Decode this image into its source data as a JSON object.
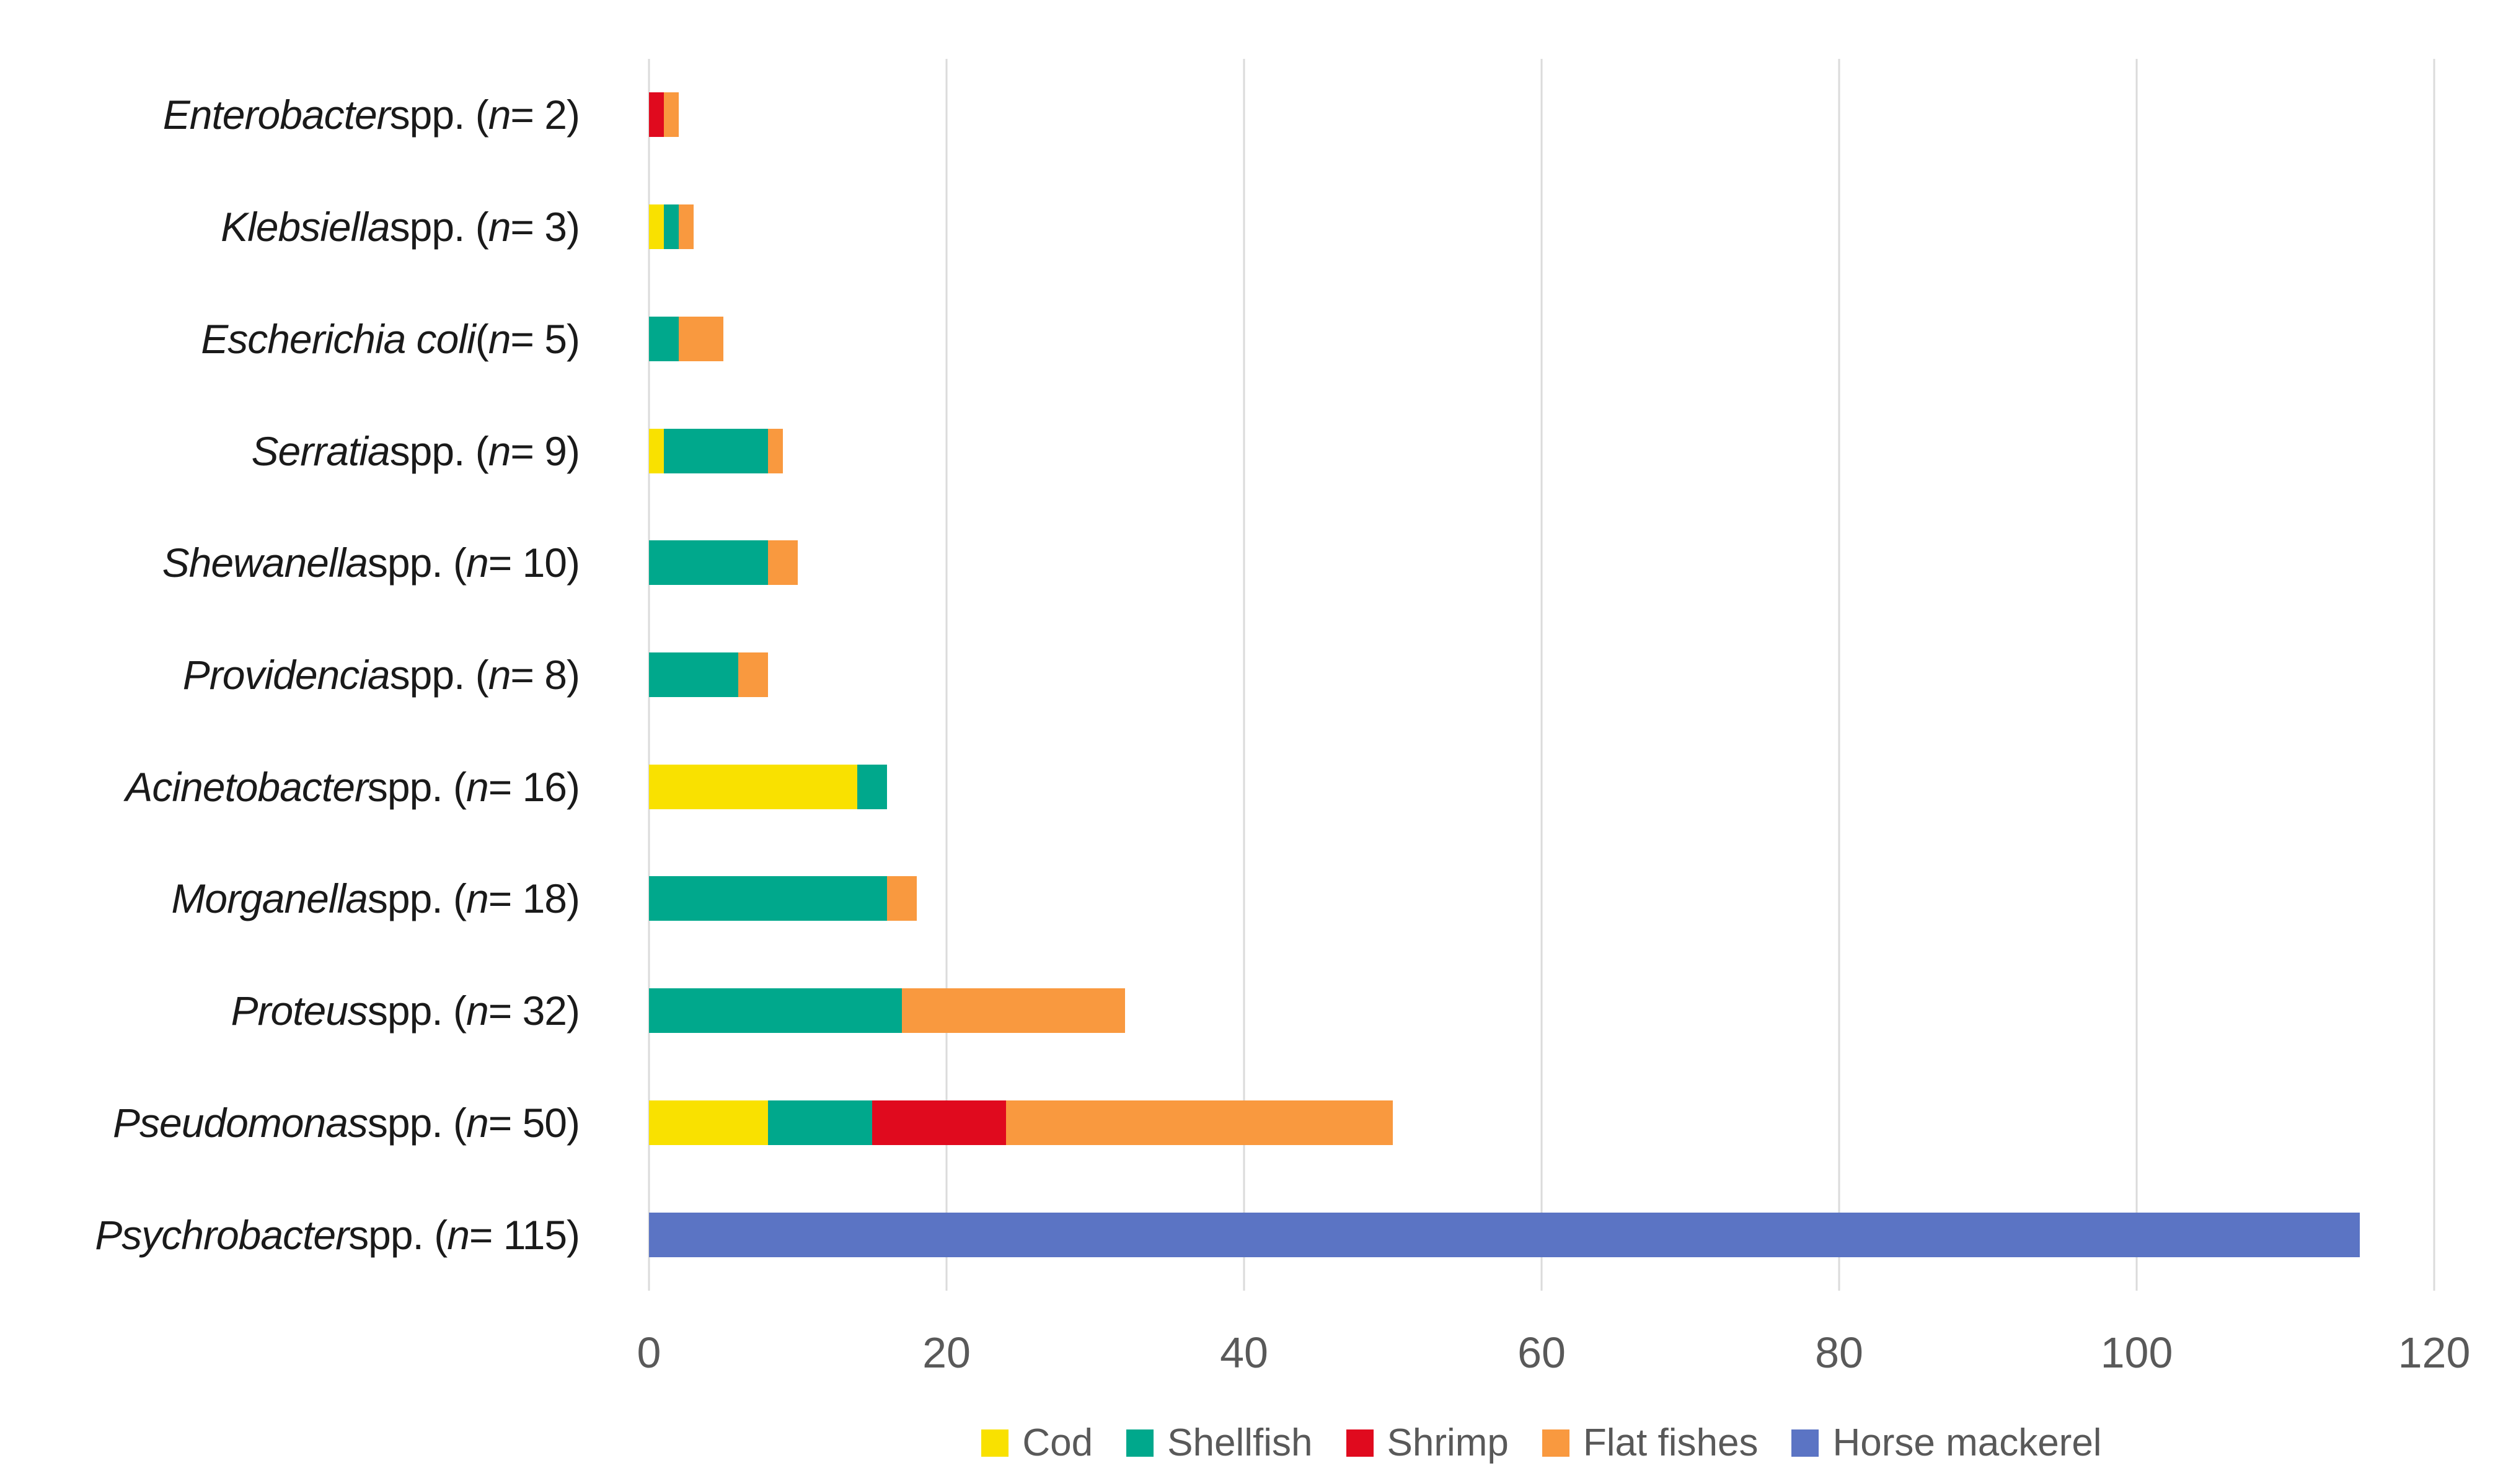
{
  "chart_data": {
    "type": "bar",
    "orientation": "horizontal",
    "stacked": true,
    "title": "",
    "xlabel": "",
    "ylabel": "",
    "xlim": [
      0,
      120
    ],
    "x_ticks": [
      0,
      20,
      40,
      60,
      80,
      100,
      120
    ],
    "grid": "vertical-gridlines-light-gray",
    "legend_position": "bottom-center",
    "series": [
      {
        "name": "Cod",
        "color": "#F9E100"
      },
      {
        "name": "Shellfish",
        "color": "#00A88C"
      },
      {
        "name": "Shrimp",
        "color": "#E00A1E"
      },
      {
        "name": "Flat fishes",
        "color": "#F9993F"
      },
      {
        "name": "Horse mackerel",
        "color": "#5B74C4"
      }
    ],
    "categories": [
      {
        "genus_italic": "Enterobacter",
        "connector": " spp. ",
        "n": 2,
        "label_plain": "Enterobacter spp. (n = 2)",
        "values": [
          0,
          0,
          1,
          1,
          0
        ]
      },
      {
        "genus_italic": "Klebsiella",
        "connector": " spp. ",
        "n": 3,
        "label_plain": "Klebsiella spp. (n = 3)",
        "values": [
          1,
          1,
          0,
          1,
          0
        ]
      },
      {
        "genus_italic": "Escherichia coli",
        "connector": " ",
        "n": 5,
        "label_plain": "Escherichia coli (n = 5)",
        "values": [
          0,
          2,
          0,
          3,
          0
        ]
      },
      {
        "genus_italic": "Serratia",
        "connector": " spp. ",
        "n": 9,
        "label_plain": "Serratia spp. (n = 9)",
        "values": [
          1,
          7,
          0,
          1,
          0
        ]
      },
      {
        "genus_italic": "Shewanella",
        "connector": " spp. ",
        "n": 10,
        "label_plain": "Shewanella spp. (n = 10)",
        "values": [
          0,
          8,
          0,
          2,
          0
        ]
      },
      {
        "genus_italic": "Providencia",
        "connector": " spp. ",
        "n": 8,
        "label_plain": "Providencia spp. (n = 8)",
        "values": [
          0,
          6,
          0,
          2,
          0
        ]
      },
      {
        "genus_italic": "Acinetobacter",
        "connector": " spp. ",
        "n": 16,
        "label_plain": "Acinetobacter spp. (n = 16)",
        "values": [
          14,
          2,
          0,
          0,
          0
        ]
      },
      {
        "genus_italic": "Morganella",
        "connector": " spp. ",
        "n": 18,
        "label_plain": "Morganella spp. (n = 18)",
        "values": [
          0,
          16,
          0,
          2,
          0
        ]
      },
      {
        "genus_italic": "Proteus",
        "connector": " spp. ",
        "n": 32,
        "label_plain": "Proteus spp. (n = 32)",
        "values": [
          0,
          17,
          0,
          15,
          0
        ]
      },
      {
        "genus_italic": "Pseudomonas",
        "connector": " spp. ",
        "n": 50,
        "label_plain": "Pseudomonas spp. (n = 50)",
        "values": [
          8,
          7,
          9,
          26,
          0
        ]
      },
      {
        "genus_italic": "Psychrobacter",
        "connector": " spp. ",
        "n": 115,
        "label_plain": "Psychrobacter spp. (n = 115)",
        "values": [
          0,
          0,
          0,
          0,
          115
        ]
      }
    ]
  },
  "colors": {
    "gridline": "#DBDBDB",
    "tick_text": "#595959",
    "legend_text": "#595959",
    "category_text": "#1A1A1A",
    "background": "#FFFFFF"
  }
}
